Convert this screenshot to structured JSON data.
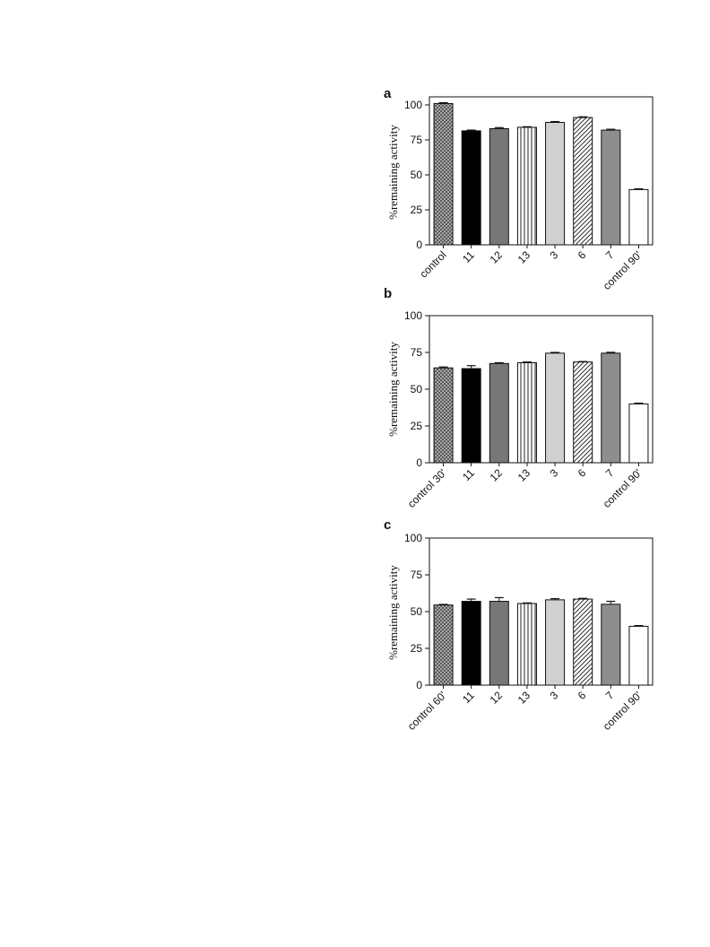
{
  "chart_data": [
    {
      "type": "bar",
      "panel": "a",
      "ylabel": "%remaining activity",
      "ylim": [
        0,
        100
      ],
      "yticks": [
        0,
        25,
        50,
        75,
        100
      ],
      "categories": [
        "control",
        "11",
        "12",
        "13",
        "3",
        "6",
        "7",
        "control 90'"
      ],
      "values": [
        101,
        81.5,
        83,
        84,
        87.5,
        91,
        82,
        39.5
      ],
      "errors": [
        0.6,
        0.5,
        0.8,
        0.4,
        0.6,
        0.5,
        0.6,
        0.5
      ],
      "fills": [
        "crosshatch",
        "#000000",
        "#777777",
        "vertical-stripes",
        "#d0d0d0",
        "diagonal-stripes",
        "#8e8e8e",
        "#ffffff"
      ],
      "grid": false,
      "legend": "none"
    },
    {
      "type": "bar",
      "panel": "b",
      "ylabel": "%remaining activity",
      "ylim": [
        0,
        100
      ],
      "yticks": [
        0,
        25,
        50,
        75,
        100
      ],
      "categories": [
        "control 30'",
        "11",
        "12",
        "13",
        "3",
        "6",
        "7",
        "control 90'"
      ],
      "values": [
        64.5,
        64,
        67.5,
        68,
        74.5,
        68.5,
        74.5,
        40
      ],
      "errors": [
        0.6,
        2.0,
        0.5,
        0.5,
        0.5,
        0.3,
        0.6,
        0.5
      ],
      "fills": [
        "crosshatch",
        "#000000",
        "#777777",
        "vertical-stripes",
        "#d0d0d0",
        "diagonal-stripes",
        "#8e8e8e",
        "#ffffff"
      ],
      "grid": false,
      "legend": "none"
    },
    {
      "type": "bar",
      "panel": "c",
      "ylabel": "%remaining activity",
      "ylim": [
        0,
        100
      ],
      "yticks": [
        0,
        25,
        50,
        75,
        100
      ],
      "categories": [
        "control 60'",
        "11",
        "12",
        "13",
        "3",
        "6",
        "7",
        "control 90'"
      ],
      "values": [
        54.5,
        57,
        57,
        55.5,
        58,
        58.5,
        55,
        40
      ],
      "errors": [
        0.4,
        1.5,
        2.5,
        0.4,
        0.8,
        0.5,
        2.0,
        0.5
      ],
      "fills": [
        "crosshatch",
        "#000000",
        "#777777",
        "vertical-stripes",
        "#d0d0d0",
        "diagonal-stripes",
        "#8e8e8e",
        "#ffffff"
      ],
      "grid": false,
      "legend": "none"
    }
  ]
}
